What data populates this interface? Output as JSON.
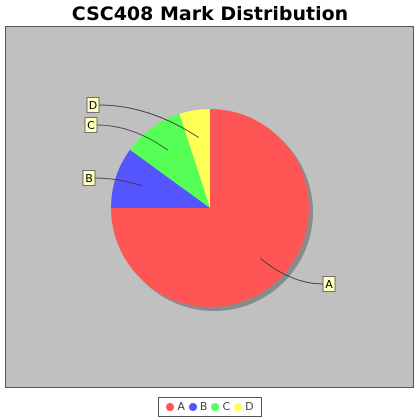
{
  "chart_data": {
    "type": "pie",
    "title": "CSC408 Mark Distribution",
    "categories": [
      "A",
      "B",
      "C",
      "D"
    ],
    "values": [
      75,
      10,
      10,
      5
    ],
    "colors": [
      "#ff5555",
      "#5555ff",
      "#55ff55",
      "#ffff55"
    ],
    "legend_position": "bottom",
    "label_style": "callout"
  }
}
